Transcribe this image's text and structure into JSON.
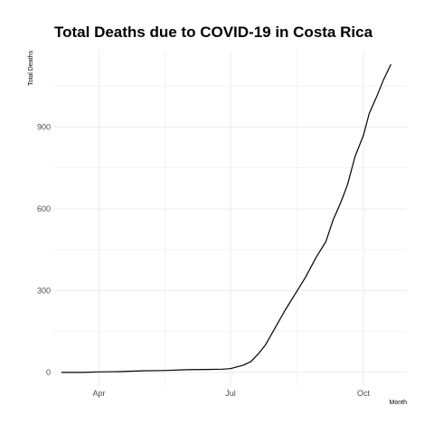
{
  "chart_data": {
    "type": "line",
    "title": "Total Deaths due to COVID-19 in Costa Rica",
    "xlabel": "Month",
    "ylabel": "Total Deaths",
    "x_ticks": [
      {
        "label": "Apr",
        "date": "2020-04-01"
      },
      {
        "label": "Jul",
        "date": "2020-07-01"
      },
      {
        "label": "Oct",
        "date": "2020-10-01"
      }
    ],
    "y_ticks": [
      0,
      300,
      600,
      900
    ],
    "xlim": [
      "2020-03-01",
      "2020-10-31"
    ],
    "ylim": [
      -50,
      1180
    ],
    "grid": true,
    "line_color": "#000000",
    "grid_color": "#ebebeb",
    "series": [
      {
        "x": [
          "2020-03-06",
          "2020-03-20",
          "2020-04-01",
          "2020-04-15",
          "2020-05-01",
          "2020-05-15",
          "2020-06-01",
          "2020-06-15",
          "2020-06-25",
          "2020-07-01",
          "2020-07-05",
          "2020-07-10",
          "2020-07-15",
          "2020-07-20",
          "2020-07-25",
          "2020-08-01",
          "2020-08-08",
          "2020-08-15",
          "2020-08-22",
          "2020-08-29",
          "2020-09-05",
          "2020-09-10",
          "2020-09-15",
          "2020-09-20",
          "2020-09-25",
          "2020-10-01",
          "2020-10-05",
          "2020-10-10",
          "2020-10-15",
          "2020-10-20"
        ],
        "y": [
          0,
          0,
          2,
          3,
          6,
          7,
          10,
          11,
          12,
          14,
          20,
          27,
          40,
          67,
          100,
          165,
          230,
          290,
          350,
          420,
          480,
          560,
          620,
          690,
          790,
          870,
          950,
          1010,
          1075,
          1130
        ]
      }
    ]
  }
}
